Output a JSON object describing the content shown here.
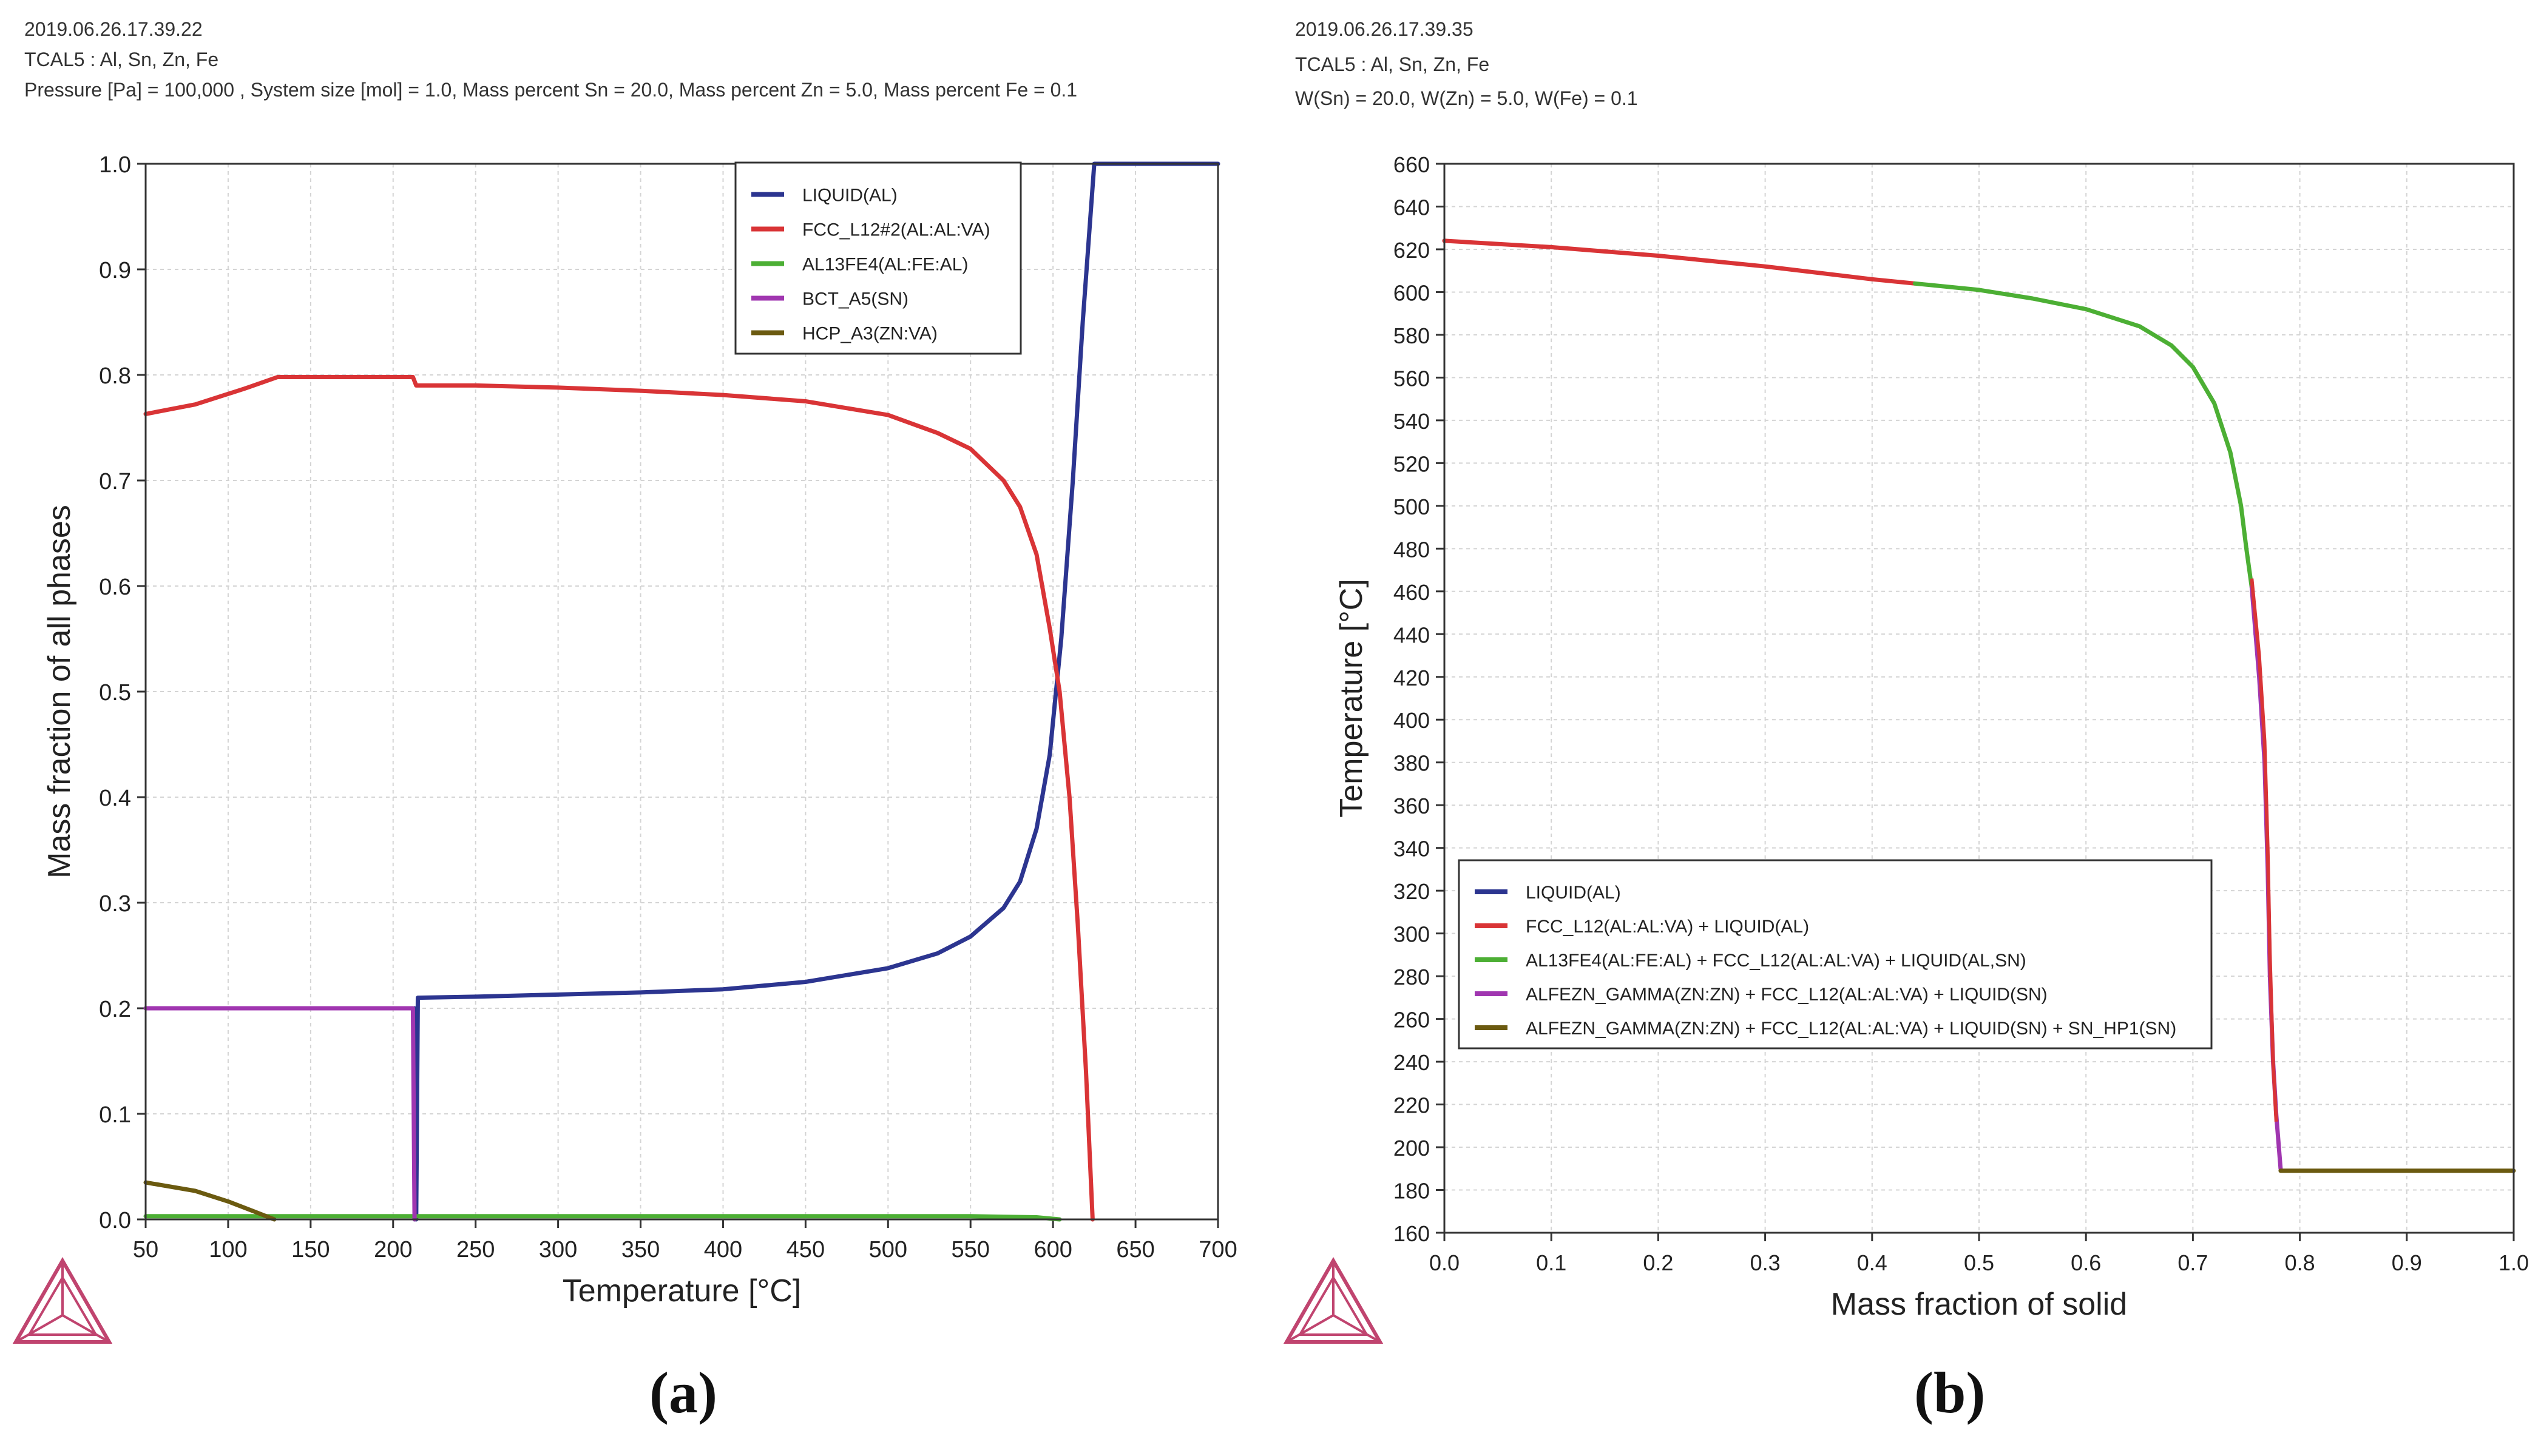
{
  "panels": [
    {
      "id": "a",
      "label": "(a)",
      "header": {
        "timestamp": "2019.06.26.17.39.22",
        "database": "TCAL5 : Al, Sn, Zn, Fe",
        "conditions": "Pressure [Pa] = 100,000 , System size [mol] = 1.0, Mass percent Sn = 20.0, Mass percent Zn = 5.0, Mass percent Fe = 0.1"
      }
    },
    {
      "id": "b",
      "label": "(b)",
      "header": {
        "timestamp": "2019.06.26.17.39.35",
        "database": "TCAL5 : Al, Sn, Zn, Fe",
        "conditions": "W(Sn) = 20.0, W(Zn) = 5.0, W(Fe) = 0.1"
      }
    }
  ],
  "chart_data": [
    {
      "type": "line",
      "panel": "a",
      "title": "",
      "xlabel": "Temperature [°C]",
      "ylabel": "Mass fraction of all phases",
      "xlim": [
        50,
        700
      ],
      "ylim": [
        0,
        1.0
      ],
      "xticks": [
        50,
        100,
        150,
        200,
        250,
        300,
        350,
        400,
        450,
        500,
        550,
        600,
        650,
        700
      ],
      "yticks": [
        "0.0",
        "0.1",
        "0.2",
        "0.3",
        "0.4",
        "0.5",
        "0.6",
        "0.7",
        "0.8",
        "0.9",
        "1.0"
      ],
      "grid": true,
      "legend_position": "top-right",
      "series": [
        {
          "name": "LIQUID(AL)",
          "color": "#2c3590",
          "points": [
            [
              213,
              0
            ],
            [
              213,
              0.2
            ],
            [
              214,
              0.0
            ],
            [
              215,
              0.21
            ],
            [
              250,
              0.211
            ],
            [
              300,
              0.213
            ],
            [
              350,
              0.215
            ],
            [
              400,
              0.218
            ],
            [
              450,
              0.225
            ],
            [
              500,
              0.238
            ],
            [
              530,
              0.252
            ],
            [
              550,
              0.268
            ],
            [
              570,
              0.295
            ],
            [
              580,
              0.32
            ],
            [
              590,
              0.37
            ],
            [
              598,
              0.44
            ],
            [
              605,
              0.55
            ],
            [
              612,
              0.7
            ],
            [
              618,
              0.85
            ],
            [
              625,
              1.0
            ],
            [
              700,
              1.0
            ]
          ]
        },
        {
          "name": "FCC_L12#2(AL:AL:VA)",
          "color": "#d93436",
          "points": [
            [
              50,
              0.763
            ],
            [
              80,
              0.772
            ],
            [
              110,
              0.787
            ],
            [
              130,
              0.798
            ],
            [
              212,
              0.798
            ],
            [
              214,
              0.79
            ],
            [
              250,
              0.79
            ],
            [
              300,
              0.788
            ],
            [
              350,
              0.785
            ],
            [
              400,
              0.781
            ],
            [
              450,
              0.775
            ],
            [
              500,
              0.762
            ],
            [
              530,
              0.745
            ],
            [
              550,
              0.73
            ],
            [
              570,
              0.7
            ],
            [
              580,
              0.675
            ],
            [
              590,
              0.63
            ],
            [
              598,
              0.56
            ],
            [
              604,
              0.5
            ],
            [
              610,
              0.4
            ],
            [
              615,
              0.28
            ],
            [
              620,
              0.14
            ],
            [
              624,
              0.0
            ]
          ]
        },
        {
          "name": "AL13FE4(AL:FE:AL)",
          "color": "#4caf34",
          "points": [
            [
              50,
              0.003
            ],
            [
              200,
              0.003
            ],
            [
              400,
              0.003
            ],
            [
              550,
              0.003
            ],
            [
              590,
              0.002
            ],
            [
              604,
              0.0
            ]
          ]
        },
        {
          "name": "BCT_A5(SN)",
          "color": "#a036b0",
          "points": [
            [
              50,
              0.2
            ],
            [
              210,
              0.2
            ],
            [
              212,
              0.2
            ],
            [
              213,
              0.0
            ]
          ]
        },
        {
          "name": "HCP_A3(ZN:VA)",
          "color": "#6b5a10",
          "points": [
            [
              50,
              0.035
            ],
            [
              80,
              0.027
            ],
            [
              100,
              0.017
            ],
            [
              115,
              0.008
            ],
            [
              128,
              0.0
            ]
          ]
        }
      ]
    },
    {
      "type": "line",
      "panel": "b",
      "title": "",
      "xlabel": "Mass fraction of solid",
      "ylabel": "Temperature [°C]",
      "xlim": [
        0.0,
        1.0
      ],
      "ylim": [
        160,
        660
      ],
      "xticks": [
        "0.0",
        "0.1",
        "0.2",
        "0.3",
        "0.4",
        "0.5",
        "0.6",
        "0.7",
        "0.8",
        "0.9",
        "1.0"
      ],
      "yticks": [
        160,
        180,
        200,
        220,
        240,
        260,
        280,
        300,
        320,
        340,
        360,
        380,
        400,
        420,
        440,
        460,
        480,
        500,
        520,
        540,
        560,
        580,
        600,
        620,
        640,
        660
      ],
      "grid": true,
      "legend_position": "bottom-left",
      "series": [
        {
          "name": "LIQUID(AL)",
          "color": "#2c3590",
          "points": [
            [
              0.0,
              624
            ],
            [
              0.001,
              624
            ]
          ]
        },
        {
          "name": "FCC_L12(AL:AL:VA) + LIQUID(AL)",
          "color": "#d93436",
          "points": [
            [
              0.0,
              624
            ],
            [
              0.1,
              621
            ],
            [
              0.2,
              617
            ],
            [
              0.3,
              612
            ],
            [
              0.4,
              606
            ],
            [
              0.44,
              604
            ]
          ]
        },
        {
          "name": "AL13FE4(AL:FE:AL) + FCC_L12(AL:AL:VA) + LIQUID(AL,SN)",
          "color": "#4caf34",
          "points": [
            [
              0.44,
              604
            ],
            [
              0.5,
              601
            ],
            [
              0.55,
              597
            ],
            [
              0.6,
              592
            ],
            [
              0.65,
              584
            ],
            [
              0.68,
              575
            ],
            [
              0.7,
              565
            ],
            [
              0.72,
              548
            ],
            [
              0.735,
              525
            ],
            [
              0.745,
              500
            ],
            [
              0.75,
              480
            ],
            [
              0.755,
              462
            ]
          ]
        },
        {
          "name": "ALFEZN_GAMMA(ZN:ZN) + FCC_L12(AL:AL:VA) + LIQUID(SN)",
          "color": "#a036b0",
          "points": [
            [
              0.755,
              462
            ],
            [
              0.762,
              420
            ],
            [
              0.767,
              380
            ],
            [
              0.77,
              330
            ],
            [
              0.772,
              280
            ],
            [
              0.775,
              240
            ],
            [
              0.778,
              215
            ],
            [
              0.782,
              190
            ]
          ]
        },
        {
          "name": "ALFEZN_GAMMA(ZN:ZN) + FCC_L12(AL:AL:VA) + LIQUID(SN) + SN_HP1(SN)",
          "color": "#6b5a10",
          "points": [
            [
              0.782,
              189
            ],
            [
              0.9,
              189
            ],
            [
              1.0,
              189
            ]
          ]
        }
      ],
      "overlays": [
        {
          "color": "#d93436",
          "points": [
            [
              0.755,
              466
            ],
            [
              0.762,
              430
            ],
            [
              0.767,
              390
            ],
            [
              0.77,
              340
            ],
            [
              0.772,
              290
            ],
            [
              0.775,
              240
            ],
            [
              0.778,
              212
            ]
          ]
        }
      ]
    }
  ]
}
